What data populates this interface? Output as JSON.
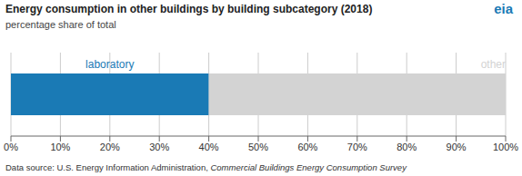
{
  "chart_data": {
    "type": "bar",
    "orientation": "horizontal",
    "stacked": true,
    "title": "Energy consumption in other buildings by building subcategory (2018)",
    "subtitle": "percentage share of total",
    "categories": [
      null
    ],
    "series": [
      {
        "name": "laboratory",
        "color": "#1a7ab5",
        "values": [
          40
        ]
      },
      {
        "name": "other",
        "color": "#d3d3d3",
        "values": [
          60
        ]
      }
    ],
    "xlim": [
      0,
      100
    ],
    "xticks": [
      {
        "value": 0,
        "label": "0%"
      },
      {
        "value": 10,
        "label": "10%"
      },
      {
        "value": 20,
        "label": "20%"
      },
      {
        "value": 30,
        "label": "30%"
      },
      {
        "value": 40,
        "label": "40%"
      },
      {
        "value": 50,
        "label": "50%"
      },
      {
        "value": 60,
        "label": "60%"
      },
      {
        "value": 70,
        "label": "70%"
      },
      {
        "value": 80,
        "label": "80%"
      },
      {
        "value": 90,
        "label": "90%"
      },
      {
        "value": 100,
        "label": "100%"
      }
    ],
    "grid": true,
    "source": [
      "Data source: U.S. Energy Information Administration, ",
      "Commercial Buildings Energy Consumption Survey"
    ],
    "logo": "eia"
  }
}
